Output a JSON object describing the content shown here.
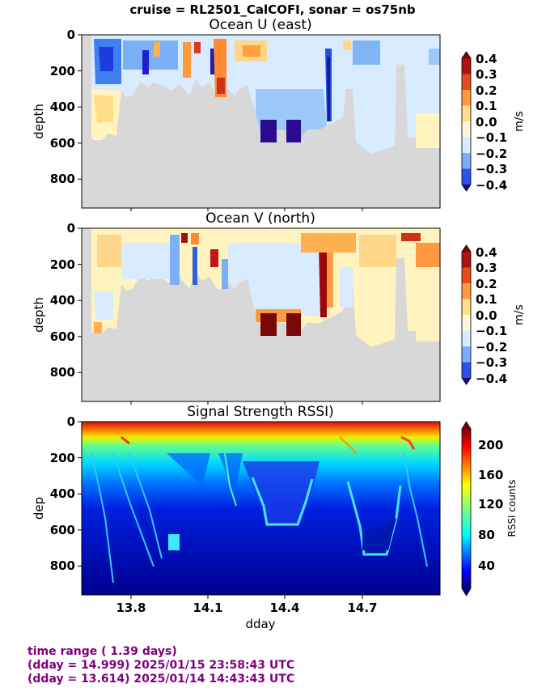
{
  "figure": {
    "suptitle": "cruise = RL2501_CalCOFI,  sonar = os75nb",
    "xlabel": "dday",
    "x_ticks": [
      "13.8",
      "14.1",
      "14.4",
      "14.7"
    ]
  },
  "footer": {
    "line1": "time range ( 1.39 days)",
    "line2": "(dday = 14.999) 2025/01/15 23:58:43 UTC",
    "line3": "(dday = 13.614) 2025/01/14 14:43:43 UTC"
  },
  "colors": {
    "land_mask": "#d8d8d8",
    "footer_text": "#800080"
  },
  "chart_data": [
    {
      "type": "heatmap",
      "title": "Ocean U (east)",
      "ylabel": "depth",
      "y_ticks": [
        "0",
        "200",
        "400",
        "600",
        "800"
      ],
      "ylim": [
        960,
        0
      ],
      "xlim": [
        13.614,
        14.999
      ],
      "colorbar": {
        "label": "m/s",
        "ticks": [
          "0.4",
          "0.3",
          "0.2",
          "0.1",
          "0.0",
          "−0.1",
          "−0.2",
          "−0.3",
          "−0.4"
        ],
        "range": [
          -0.4,
          0.4
        ],
        "colormap": "bwr-discrete"
      }
    },
    {
      "type": "heatmap",
      "title": "Ocean V (north)",
      "ylabel": "depth",
      "y_ticks": [
        "0",
        "200",
        "400",
        "600",
        "800"
      ],
      "ylim": [
        960,
        0
      ],
      "xlim": [
        13.614,
        14.999
      ],
      "colorbar": {
        "label": "m/s",
        "ticks": [
          "0.4",
          "0.3",
          "0.2",
          "0.1",
          "0.0",
          "−0.1",
          "−0.2",
          "−0.3",
          "−0.4"
        ],
        "range": [
          -0.4,
          0.4
        ],
        "colormap": "bwr-discrete"
      }
    },
    {
      "type": "heatmap",
      "title": "Signal Strength RSSI)",
      "ylabel": "dep",
      "y_ticks": [
        "0",
        "200",
        "400",
        "600",
        "800"
      ],
      "ylim": [
        960,
        0
      ],
      "xlim": [
        13.614,
        14.999
      ],
      "colorbar": {
        "label": "RSSI counts",
        "ticks": [
          "200",
          "160",
          "120",
          "80",
          "40"
        ],
        "range": [
          10,
          225
        ],
        "colormap": "jet"
      }
    }
  ]
}
